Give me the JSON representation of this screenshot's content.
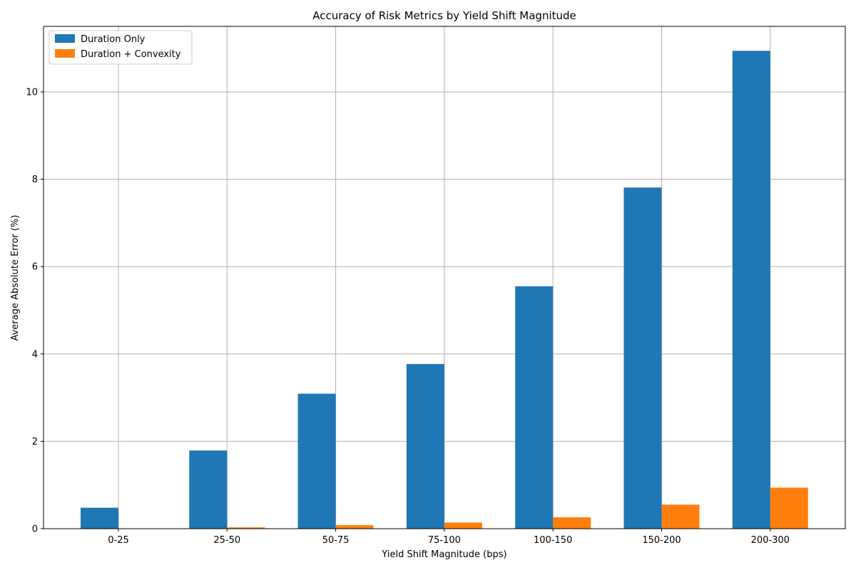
{
  "chart_data": {
    "type": "bar",
    "title": "Accuracy of Risk Metrics by Yield Shift Magnitude",
    "xlabel": "Yield Shift Magnitude (bps)",
    "ylabel": "Average Absolute Error (%)",
    "categories": [
      "0-25",
      "25-50",
      "50-75",
      "75-100",
      "100-150",
      "150-200",
      "200-300"
    ],
    "series": [
      {
        "name": "Duration Only",
        "color": "#1f77b4",
        "values": [
          0.48,
          1.79,
          3.09,
          3.77,
          5.55,
          7.81,
          10.94
        ]
      },
      {
        "name": "Duration + Convexity",
        "color": "#ff7f0e",
        "values": [
          0.0,
          0.03,
          0.08,
          0.14,
          0.26,
          0.55,
          0.94
        ]
      }
    ],
    "ylim": [
      0,
      11.5
    ],
    "yticks": [
      0,
      2,
      4,
      6,
      8,
      10
    ],
    "grid": true,
    "legend_position": "top-left"
  }
}
